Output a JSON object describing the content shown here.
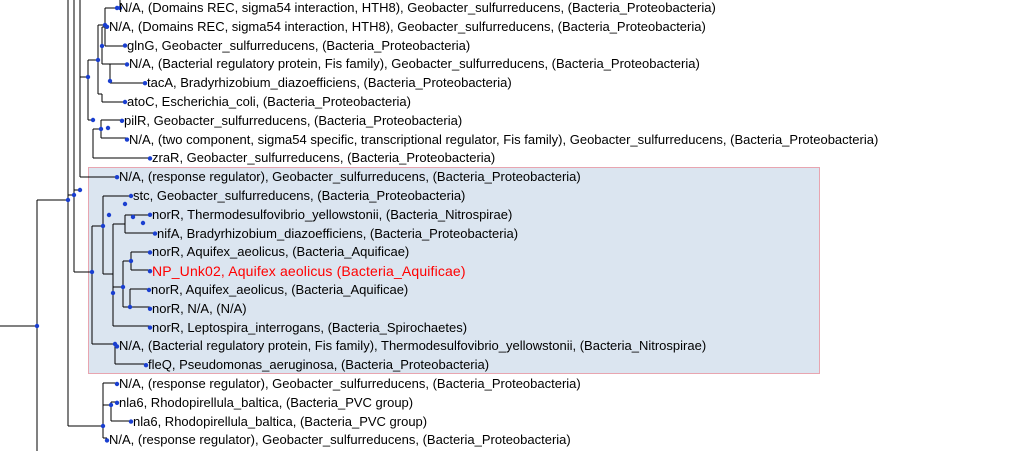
{
  "colors": {
    "branch": "#000000",
    "node": "#1a3fd0",
    "clade_fill": "#dbe5f0",
    "clade_border": "#e8a5b0",
    "label": "#000000",
    "query": "#ff0000"
  },
  "leaves": [
    {
      "label": "N/A, (Domains REC, sigma54 interaction, HTH8), Geobacter_sulfurreducens, (Bacteria_Proteobacteria)"
    },
    {
      "label": "N/A, (Domains REC, sigma54 interaction, HTH8), Geobacter_sulfurreducens, (Bacteria_Proteobacteria)"
    },
    {
      "label": "glnG, Geobacter_sulfurreducens, (Bacteria_Proteobacteria)"
    },
    {
      "label": "N/A, (Bacterial regulatory protein, Fis family), Geobacter_sulfurreducens, (Bacteria_Proteobacteria)"
    },
    {
      "label": "tacA, Bradyrhizobium_diazoefficiens, (Bacteria_Proteobacteria)"
    },
    {
      "label": "atoC, Escherichia_coli, (Bacteria_Proteobacteria)"
    },
    {
      "label": "pilR, Geobacter_sulfurreducens, (Bacteria_Proteobacteria)"
    },
    {
      "label": "N/A, (two component, sigma54 specific, transcriptional regulator, Fis family), Geobacter_sulfurreducens, (Bacteria_Proteobacteria)"
    },
    {
      "label": "zraR, Geobacter_sulfurreducens, (Bacteria_Proteobacteria)"
    },
    {
      "label": "N/A, (response regulator), Geobacter_sulfurreducens, (Bacteria_Proteobacteria)"
    },
    {
      "label": "stc, Geobacter_sulfurreducens, (Bacteria_Proteobacteria)"
    },
    {
      "label": "norR, Thermodesulfovibrio_yellowstonii, (Bacteria_Nitrospirae)"
    },
    {
      "label": "nifA, Bradyrhizobium_diazoefficiens, (Bacteria_Proteobacteria)"
    },
    {
      "label": "norR, Aquifex_aeolicus, (Bacteria_Aquificae)"
    },
    {
      "label": "NP_Unk02, Aquifex aeolicus (Bacteria_Aquificae)",
      "highlight": true
    },
    {
      "label": "norR, Aquifex_aeolicus, (Bacteria_Aquificae)"
    },
    {
      "label": "norR, N/A, (N/A)"
    },
    {
      "label": "norR, Leptospira_interrogans, (Bacteria_Spirochaetes)"
    },
    {
      "label": "N/A, (Bacterial regulatory protein, Fis family), Thermodesulfovibrio_yellowstonii, (Bacteria_Nitrospirae)"
    },
    {
      "label": "fleQ, Pseudomonas_aeruginosa, (Bacteria_Proteobacteria)"
    },
    {
      "label": "N/A, (response regulator), Geobacter_sulfurreducens, (Bacteria_Proteobacteria)"
    },
    {
      "label": "nla6, Rhodopirellula_baltica, (Bacteria_PVC group)"
    },
    {
      "label": "nla6, Rhodopirellula_baltica, (Bacteria_PVC group)"
    },
    {
      "label": "N/A, (response regulator), Geobacter_sulfurreducens, (Bacteria_Proteobacteria)"
    }
  ]
}
